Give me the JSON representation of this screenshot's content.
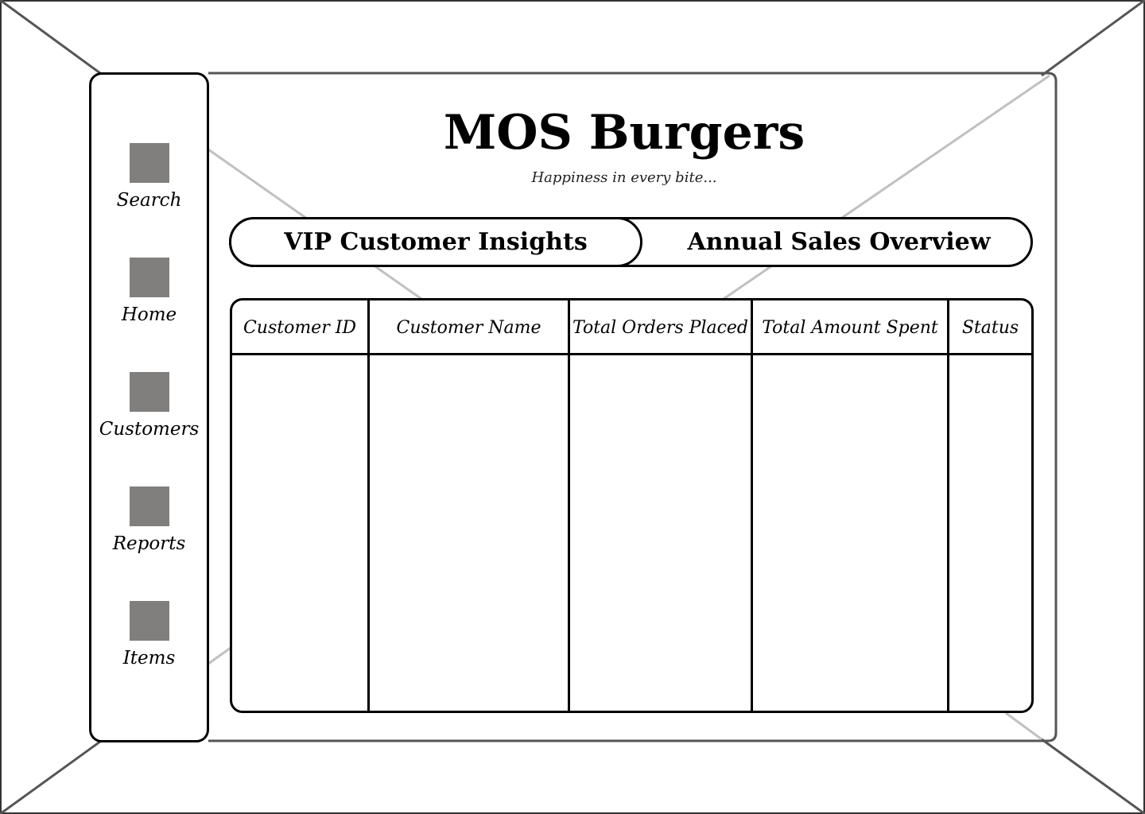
{
  "sidebar": {
    "items": [
      {
        "label": "Search",
        "icon": "search-icon"
      },
      {
        "label": "Home",
        "icon": "home-icon"
      },
      {
        "label": "Customers",
        "icon": "customers-icon"
      },
      {
        "label": "Reports",
        "icon": "reports-icon"
      },
      {
        "label": "Items",
        "icon": "items-icon"
      }
    ]
  },
  "header": {
    "title": "MOS Burgers",
    "tagline": "Happiness in every bite..."
  },
  "tabs": [
    {
      "label": "VIP Customer Insights",
      "active": true
    },
    {
      "label": "Annual Sales Overview",
      "active": false
    }
  ],
  "table": {
    "columns": [
      "Customer ID",
      "Customer Name",
      "Total Orders Placed",
      "Total Amount Spent",
      "Status"
    ],
    "rows": []
  },
  "colors": {
    "border": "#000000",
    "icon_placeholder": "#817e7e",
    "frame_outline": "#555555",
    "frame_inner_lines": "#c0c0c0"
  }
}
